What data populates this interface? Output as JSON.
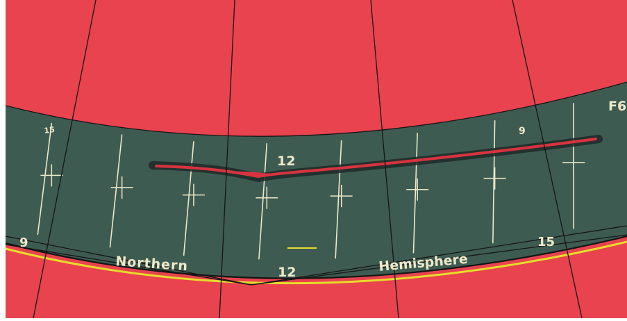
{
  "colors": {
    "background": "#e8434f",
    "band": "#3e5b52",
    "band_shadow": "#2d3f39",
    "line": "#eee9c8",
    "trace": "#d8333e",
    "trace_halo": "#1f2a28",
    "edge_yellow": "#e6dc2a",
    "gore_line": "#151515"
  },
  "labels": {
    "num_15_top_left": "15",
    "num_12_top": "12",
    "num_9_top_right": "9",
    "corner_code": "F6",
    "num_9_bottom_left": "9",
    "northern": "Northern",
    "num_12_bottom": "12",
    "hemisphere": "Hemisphere",
    "num_15_bottom_right": "15"
  }
}
